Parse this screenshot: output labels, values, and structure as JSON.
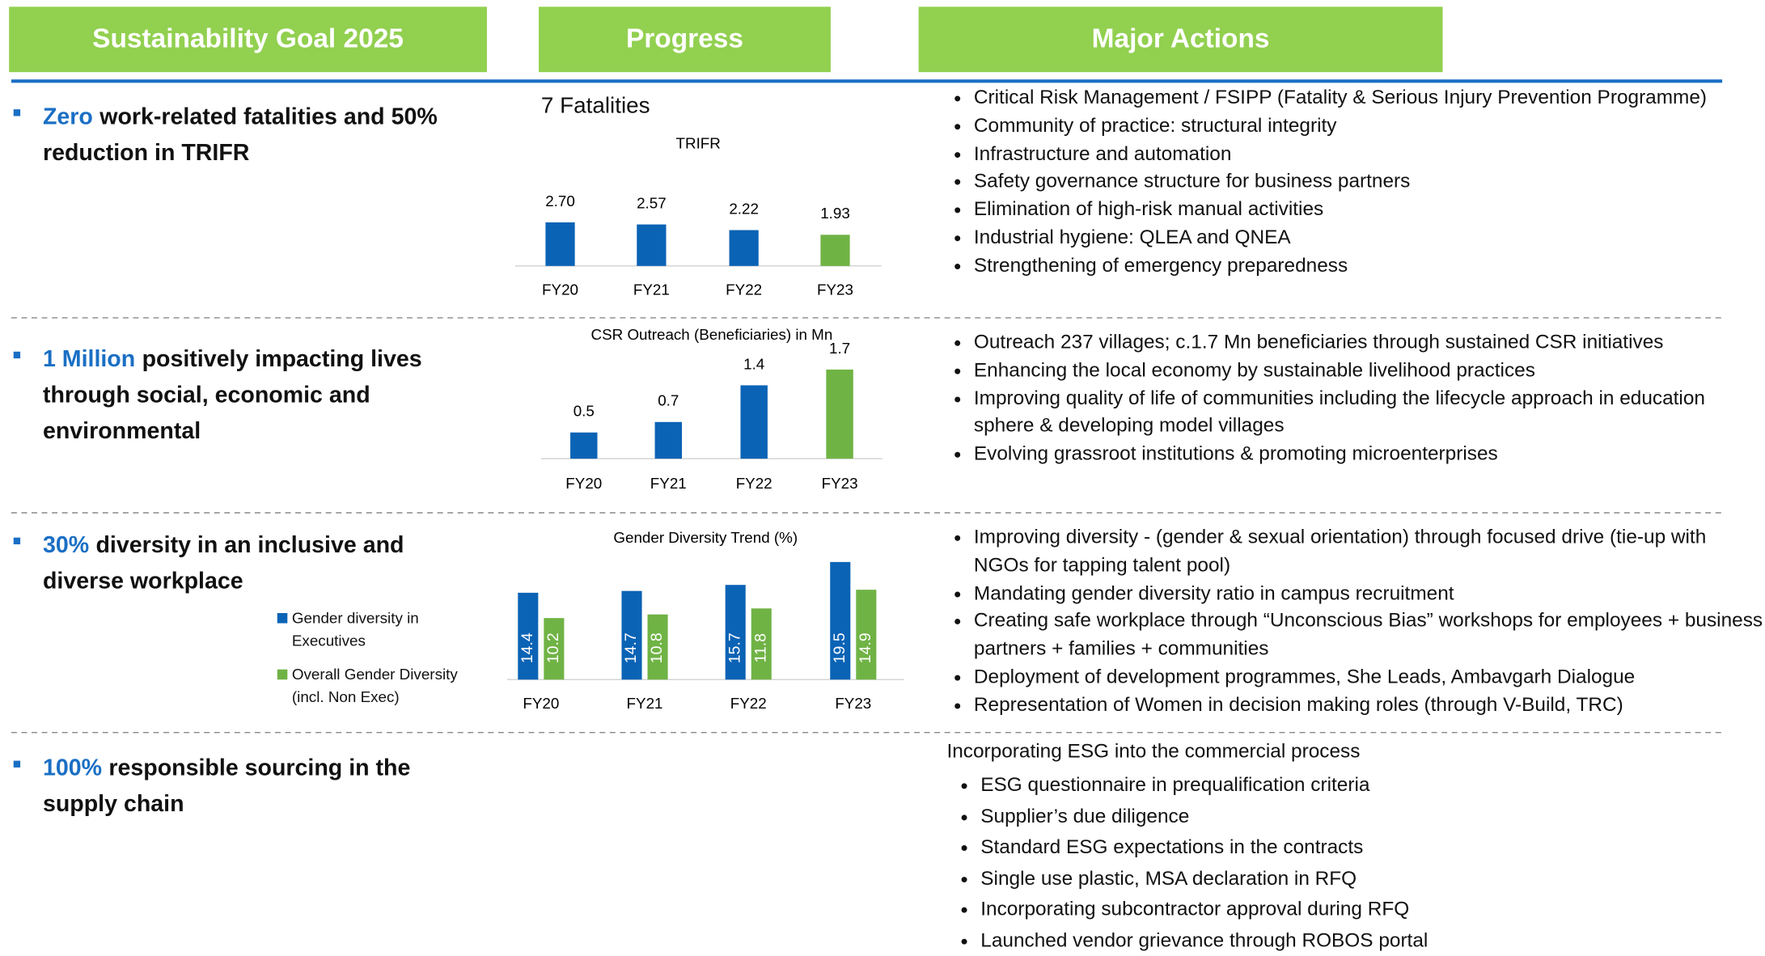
{
  "headers": [
    "Sustainability Goal 2025",
    "Progress",
    "Major Actions"
  ],
  "rows": [
    {
      "goal": {
        "highlight": "Zero",
        "text": "work-related fatalities and 50% reduction in TRIFR"
      },
      "progress": {
        "note": "7 Fatalities",
        "chart_data": {
          "type": "bar",
          "title": "TRIFR",
          "categories": [
            "FY20",
            "FY21",
            "FY22",
            "FY23"
          ],
          "values": [
            2.7,
            2.57,
            2.22,
            1.93
          ],
          "value_labels": [
            "2.70",
            "2.57",
            "2.22",
            "1.93"
          ],
          "colors": [
            "#0b63b5",
            "#0b63b5",
            "#0b63b5",
            "#70b345"
          ],
          "ylim": [
            0,
            6
          ]
        }
      },
      "actions": {
        "items": [
          "Critical Risk Management / FSIPP (Fatality & Serious Injury Prevention Programme)",
          "Community of practice: structural integrity",
          "Infrastructure and automation",
          "Safety governance structure for business partners",
          "Elimination of high-risk manual activities",
          "Industrial hygiene: QLEA and QNEA",
          "Strengthening of emergency preparedness"
        ]
      }
    },
    {
      "goal": {
        "highlight": "1 Million",
        "text": "positively impacting lives through social, economic and environmental"
      },
      "progress": {
        "chart_data": {
          "type": "bar",
          "title": "CSR Outreach (Beneficiaries) in Mn",
          "categories": [
            "FY20",
            "FY21",
            "FY22",
            "FY23"
          ],
          "values": [
            0.5,
            0.7,
            1.4,
            1.7
          ],
          "colors": [
            "#0b63b5",
            "#0b63b5",
            "#0b63b5",
            "#70b345"
          ],
          "ylim": [
            0,
            2
          ]
        }
      },
      "actions": {
        "items": [
          "Outreach 237 villages; c.1.7 Mn beneficiaries through sustained CSR initiatives",
          "Enhancing the local economy by sustainable livelihood practices",
          "Improving quality of life of communities including the lifecycle approach in education sphere & developing model villages",
          "Evolving grassroot institutions & promoting microenterprises"
        ]
      }
    },
    {
      "goal": {
        "highlight": "30%",
        "text": "diversity in an inclusive and diverse workplace"
      },
      "progress": {
        "chart_data": {
          "type": "grouped_bar",
          "title": "Gender Diversity Trend (%)",
          "categories": [
            "FY20",
            "FY21",
            "FY22",
            "FY23"
          ],
          "series": [
            {
              "name": "Gender diversity in Executives",
              "color": "#0b63b5",
              "values": [
                14.4,
                14.7,
                15.7,
                19.5
              ]
            },
            {
              "name": "Overall Gender Diversity (incl. Non Exec)",
              "color": "#70b345",
              "values": [
                10.2,
                10.8,
                11.8,
                14.9
              ]
            }
          ],
          "ylim": [
            0,
            20
          ]
        }
      },
      "actions": {
        "items": [
          "Improving diversity - (gender & sexual orientation) through focused drive (tie-up with NGOs for tapping talent pool)",
          "Mandating gender diversity ratio in campus recruitment",
          "Creating safe workplace through “Unconscious Bias” workshops for employees + business partners + families + communities",
          "Deployment of development programmes, She Leads, Ambavgarh Dialogue",
          "Representation of Women in decision making roles (through V-Build, TRC)"
        ]
      }
    },
    {
      "goal": {
        "highlight": "100%",
        "text": "responsible sourcing in the supply chain"
      },
      "actions": {
        "intro": "Incorporating ESG into the commercial process",
        "items": [
          "ESG questionnaire in prequalification criteria",
          "Supplier’s due diligence",
          "Standard ESG expectations in the contracts",
          "Single use plastic, MSA declaration in RFQ",
          "Incorporating subcontractor approval during RFQ",
          "Launched vendor grievance through ROBOS portal"
        ]
      }
    }
  ]
}
